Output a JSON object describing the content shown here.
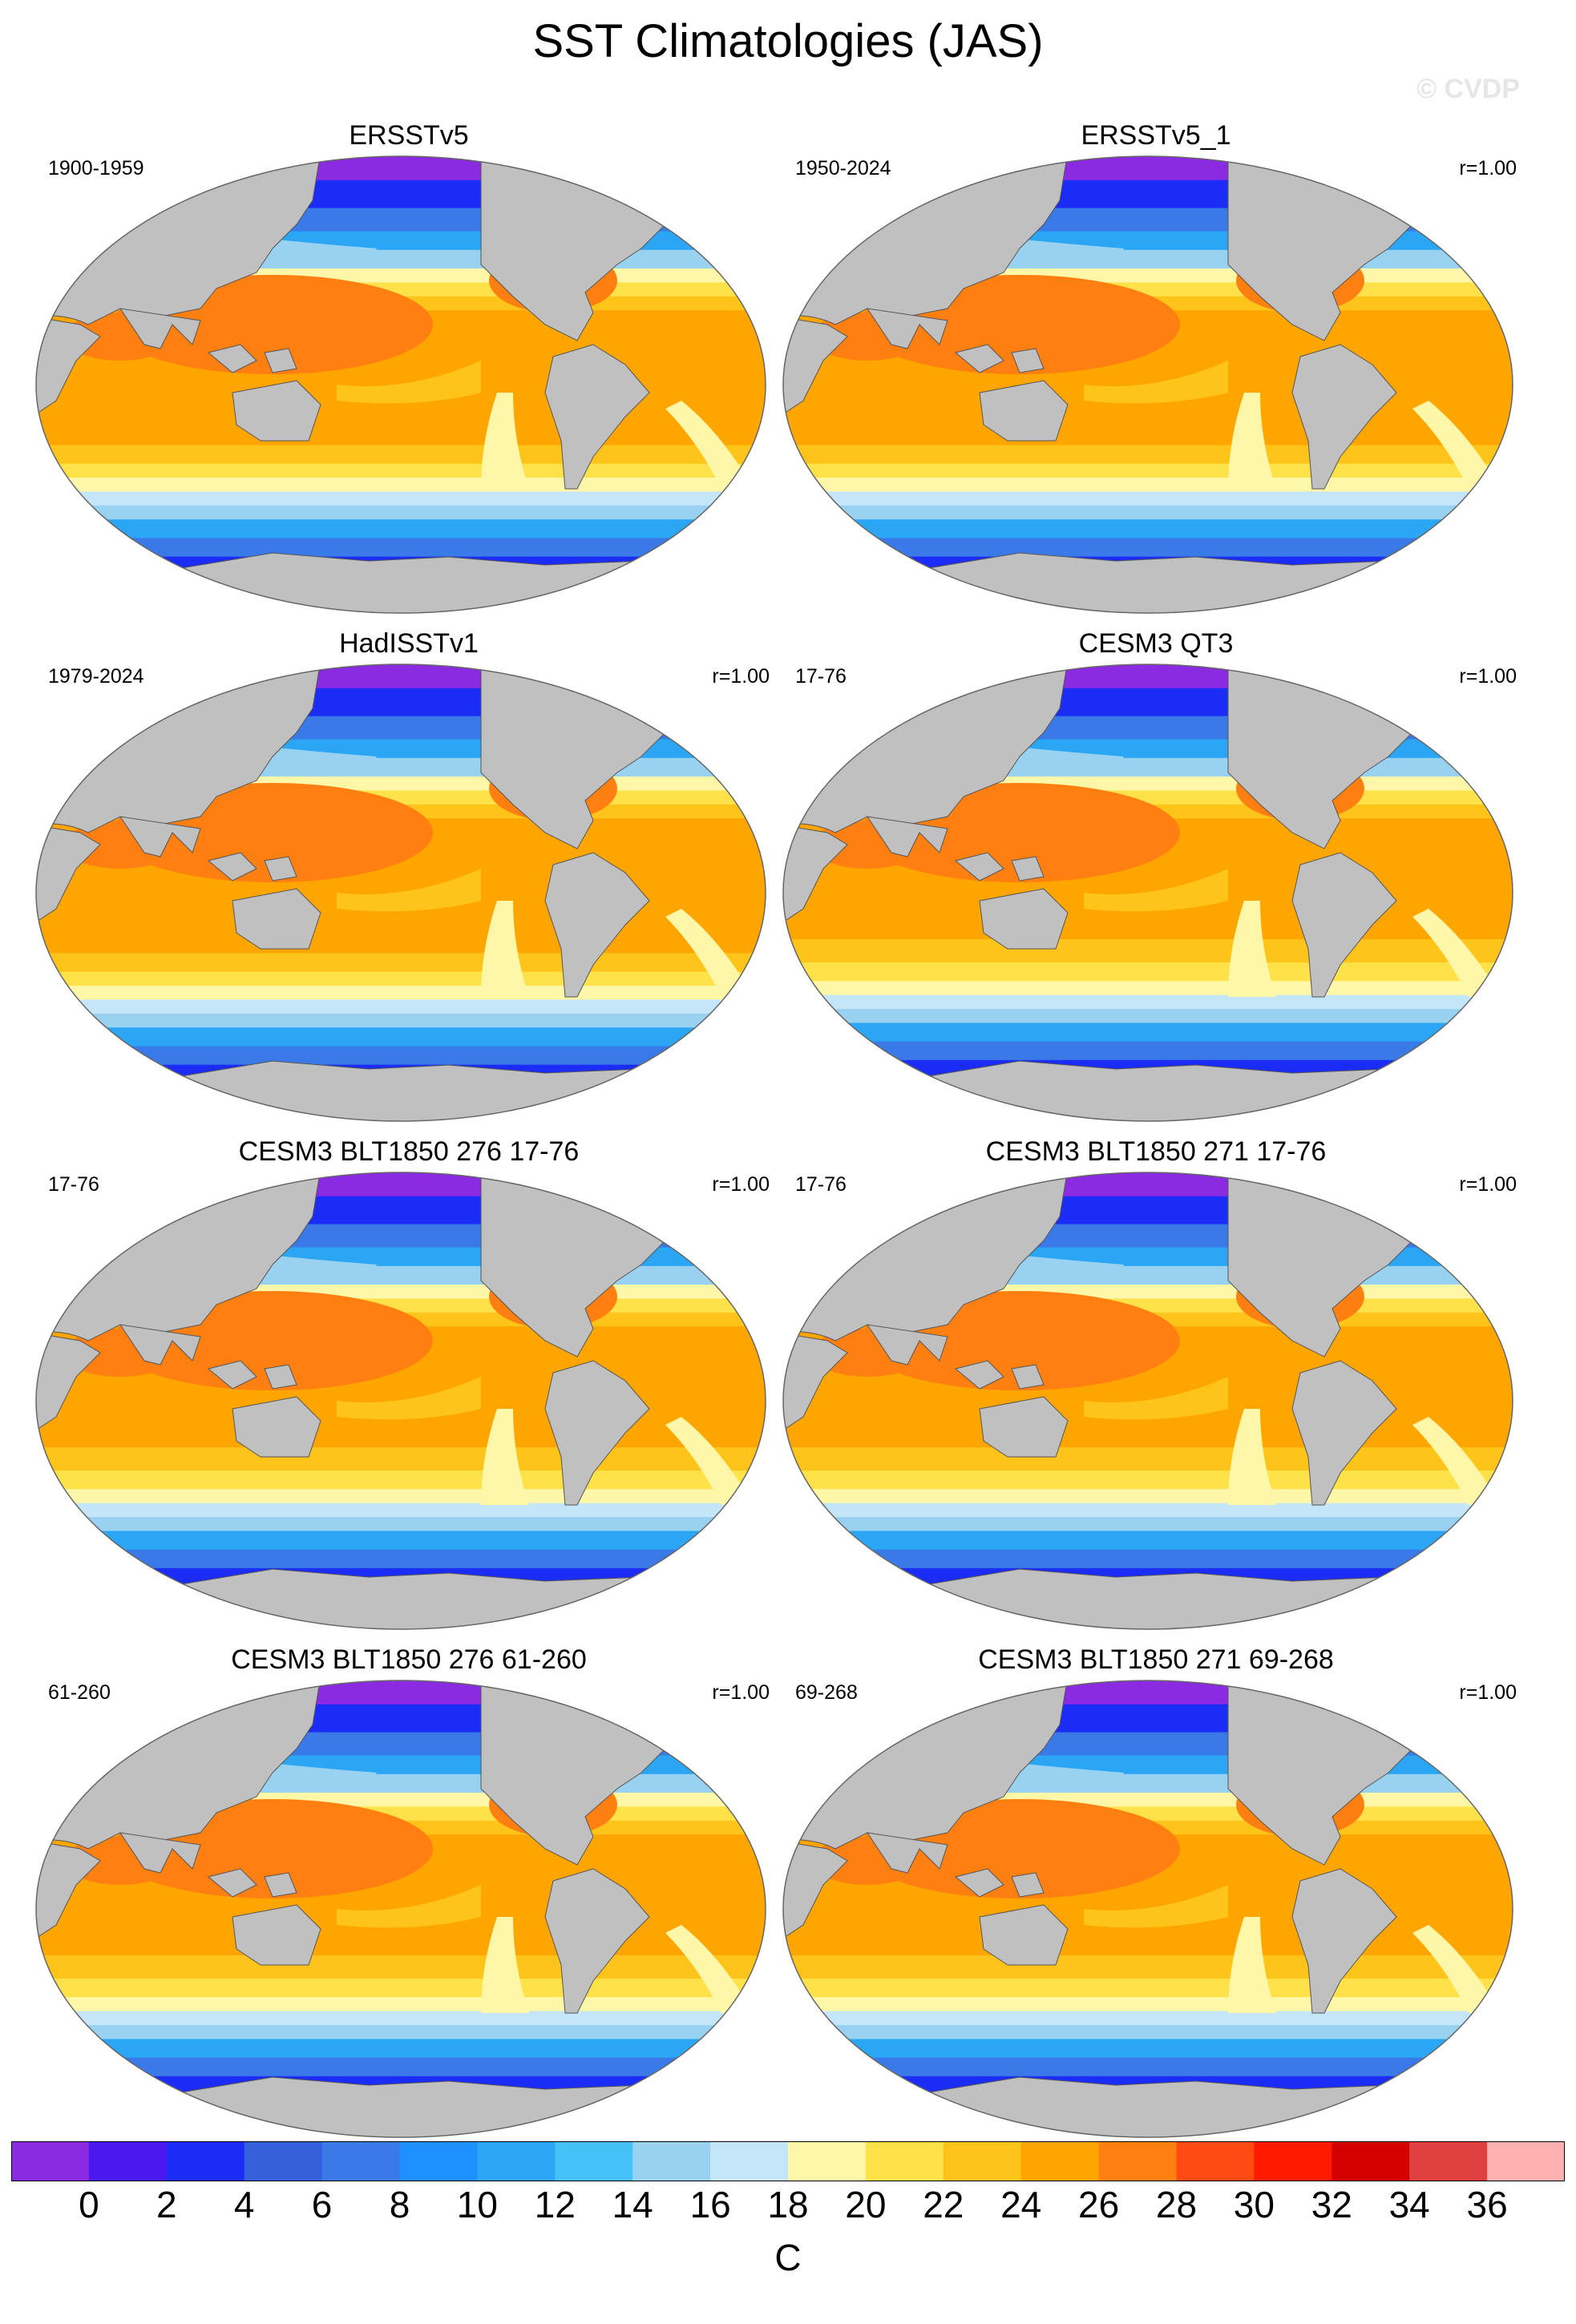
{
  "title": "SST Climatologies (JAS)",
  "watermark": "© CVDP",
  "panels": [
    {
      "title": "ERSSTv5",
      "period": "1900-1959",
      "corr": "",
      "variant": "obs"
    },
    {
      "title": "ERSSTv5_1",
      "period": "1950-2024",
      "corr": "r=1.00",
      "variant": "obs"
    },
    {
      "title": "HadISSTv1",
      "period": "1979-2024",
      "corr": "r=1.00",
      "variant": "obs"
    },
    {
      "title": "CESM3 QT3",
      "period": "17-76",
      "corr": "r=1.00",
      "variant": "model"
    },
    {
      "title": "CESM3 BLT1850 276 17-76",
      "period": "17-76",
      "corr": "r=1.00",
      "variant": "model"
    },
    {
      "title": "CESM3 BLT1850 271 17-76",
      "period": "17-76",
      "corr": "r=1.00",
      "variant": "model"
    },
    {
      "title": "CESM3 BLT1850 276 61-260",
      "period": "61-260",
      "corr": "r=1.00",
      "variant": "model"
    },
    {
      "title": "CESM3 BLT1850 271 69-268",
      "period": "69-268",
      "corr": "r=1.00",
      "variant": "model"
    }
  ],
  "colorbar": {
    "unit": "C",
    "tick_labels": [
      "0",
      "2",
      "4",
      "6",
      "8",
      "10",
      "12",
      "14",
      "16",
      "18",
      "20",
      "22",
      "24",
      "26",
      "28",
      "30",
      "32",
      "34",
      "36"
    ],
    "colors": [
      "#8a2be2",
      "#4b18f0",
      "#1a2cf5",
      "#3560dc",
      "#3a7ae8",
      "#1e90ff",
      "#2aa6f5",
      "#45c1f8",
      "#99d2f0",
      "#c4e6f8",
      "#fff7a8",
      "#ffe14a",
      "#ffc41a",
      "#ffa500",
      "#ff7f10",
      "#ff4a12",
      "#ff1a00",
      "#d40000",
      "#e04040",
      "#ffb0b0"
    ]
  },
  "land_color": "#c0c0c0"
}
